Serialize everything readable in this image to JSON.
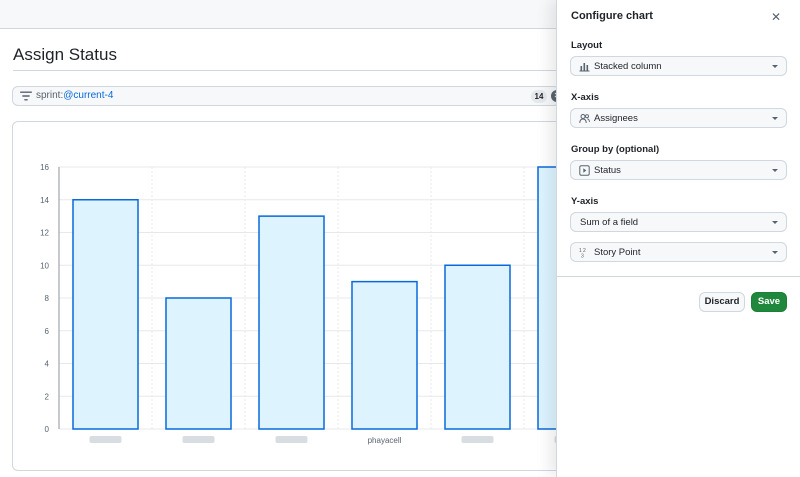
{
  "page": {
    "title": "Assign Status"
  },
  "filter": {
    "prefix": "sprint:",
    "value": "@current-4",
    "count": "14",
    "clear_icon": "x-circle-fill-icon"
  },
  "chart_data": {
    "type": "bar",
    "categories": [
      "",
      "",
      "",
      "phayacell",
      "",
      ""
    ],
    "values": [
      14,
      8,
      13,
      9,
      10,
      16
    ],
    "ylim": [
      0,
      16
    ],
    "yticks": [
      0,
      2,
      4,
      6,
      8,
      10,
      12,
      14,
      16
    ],
    "grid": true,
    "bar_fill": "#ddf4ff",
    "bar_stroke": "#0969da"
  },
  "panel": {
    "title": "Configure chart",
    "close_icon": "x-icon",
    "layout": {
      "label": "Layout",
      "value": "Stacked column",
      "icon": "graph-icon"
    },
    "x_axis": {
      "label": "X-axis",
      "value": "Assignees",
      "icon": "people-icon"
    },
    "group_by": {
      "label": "Group by (optional)",
      "value": "Status",
      "icon": "single-select-icon"
    },
    "y_axis": {
      "label": "Y-axis",
      "value": "Sum of a field",
      "field_value": "Story Point",
      "field_icon": "number-icon"
    },
    "discard_label": "Discard",
    "save_label": "Save"
  },
  "colors": {
    "accent": "#0969da",
    "save": "#1f883d",
    "border": "#d0d7de"
  }
}
